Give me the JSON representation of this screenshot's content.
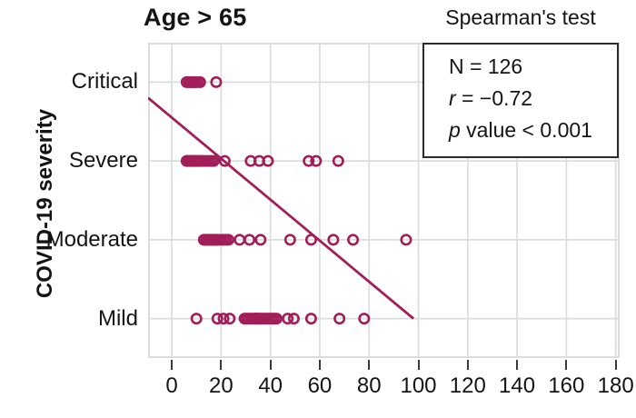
{
  "header": {
    "title": "Age > 65"
  },
  "stats": {
    "heading": "Spearman's test",
    "lines": [
      {
        "italic": "",
        "text": "N = 126"
      },
      {
        "italic": "r",
        "text": " = −0.72"
      },
      {
        "italic": "p",
        "text": " value < 0.001"
      }
    ]
  },
  "colors": {
    "accent": "#A21E58",
    "grid": "#D9DEDB",
    "axis_tick": "#3A3A3A",
    "text": "#141414",
    "box_border": "#2B2B2B",
    "background": "#FFFFFF"
  },
  "chart_data": {
    "type": "scatter",
    "title": "Age > 65",
    "xlabel": "",
    "ylabel": "COVID-19 severity",
    "xlim": [
      -9.6,
      181.6
    ],
    "x_ticks": [
      0,
      20,
      40,
      60,
      80,
      100,
      120,
      140,
      160,
      180
    ],
    "grid": true,
    "legend": "none",
    "categories_top_to_bottom": [
      "Critical",
      "Severe",
      "Moderate",
      "Mild"
    ],
    "severity_scale": {
      "Mild": 1,
      "Moderate": 2,
      "Severe": 3,
      "Critical": 4
    },
    "series": [
      {
        "name": "Critical",
        "x": [
          6,
          7,
          7.5,
          8,
          8.5,
          9,
          9.5,
          10.5,
          11.5,
          18
        ]
      },
      {
        "name": "Severe",
        "x": [
          6,
          6.5,
          7,
          7.5,
          8,
          8.5,
          9,
          9.5,
          10,
          10.5,
          11,
          11.5,
          12,
          13,
          14,
          15,
          16,
          17,
          21.5,
          32,
          35.5,
          39,
          55.5,
          58.5,
          67.5
        ]
      },
      {
        "name": "Moderate",
        "x": [
          13,
          13.5,
          14,
          14.5,
          15,
          15.5,
          16,
          16.5,
          17,
          17.5,
          18,
          18.5,
          19,
          20,
          21,
          22,
          23,
          27.5,
          31.5,
          36,
          48,
          56.5,
          65.5,
          73.5,
          95
        ]
      },
      {
        "name": "Mild",
        "x": [
          10,
          18.5,
          21,
          23.5,
          29.5,
          30.5,
          31.5,
          32.5,
          33.5,
          34,
          34.5,
          35,
          35.5,
          36.5,
          37.5,
          38.5,
          39.5,
          40.5,
          41.5,
          42.5,
          47,
          49.5,
          56.5,
          68,
          78
        ]
      }
    ],
    "trendline": {
      "x_start": -9.6,
      "severity_start": 3.3,
      "x_end": 98,
      "severity_end": 0.5
    },
    "annotation": {
      "heading": "Spearman's test",
      "N": 126,
      "r": -0.72,
      "p": "< 0.001"
    }
  }
}
